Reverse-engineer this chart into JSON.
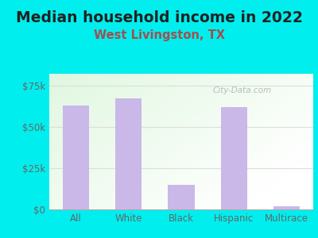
{
  "title": "Median household income in 2022",
  "subtitle": "West Livingston, TX",
  "categories": [
    "All",
    "White",
    "Black",
    "Hispanic",
    "Multirace"
  ],
  "values": [
    63000,
    67000,
    15000,
    62000,
    2000
  ],
  "bar_color": "#c9b8e8",
  "title_fontsize": 13.5,
  "subtitle_fontsize": 10.5,
  "subtitle_color": "#a05050",
  "title_color": "#222222",
  "background_outer": "#00EEEE",
  "yticks": [
    0,
    25000,
    50000,
    75000
  ],
  "ytick_labels": [
    "$0",
    "$25k",
    "$50k",
    "$75k"
  ],
  "ylim": [
    0,
    82000
  ],
  "watermark": "City-Data.com",
  "axis_label_color": "#666666",
  "grid_color": "#dddddd",
  "tick_fontsize": 8.5
}
